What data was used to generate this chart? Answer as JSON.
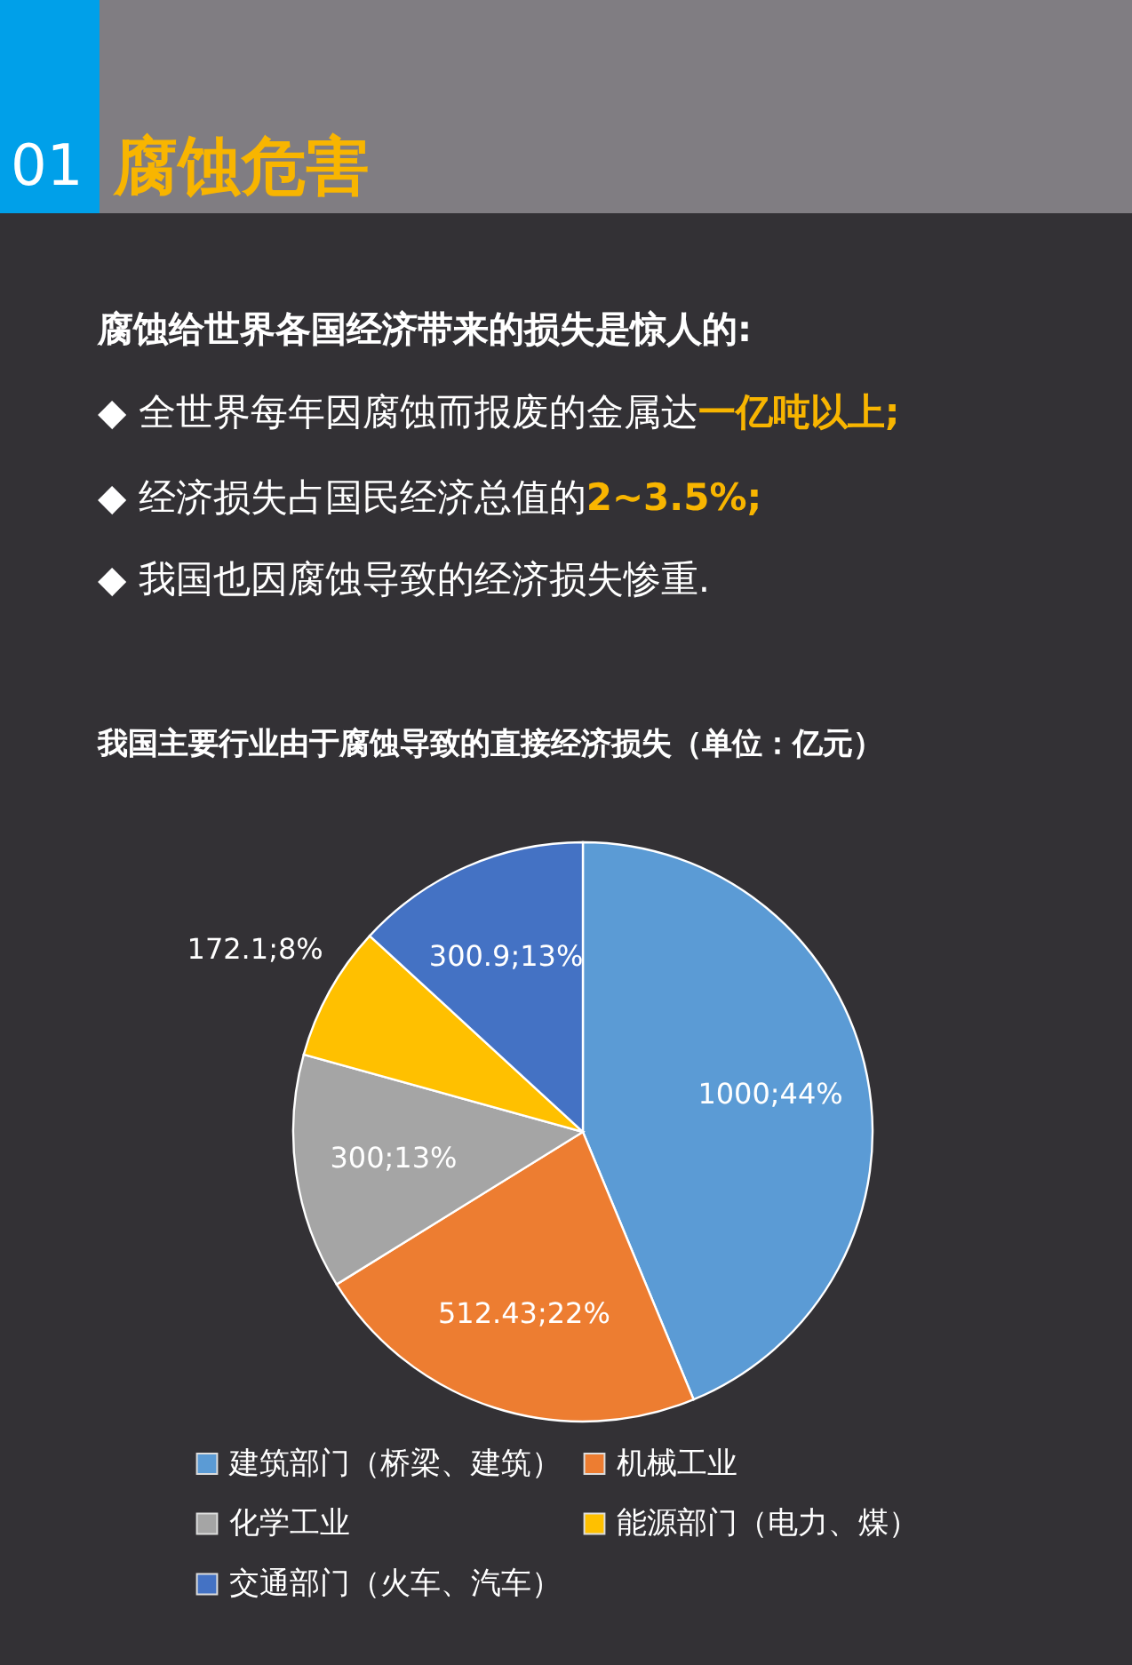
{
  "chart_data": {
    "type": "pie",
    "title": "我国主要行业由于腐蚀导致的直接经济损失（单位：亿元）",
    "categories": [
      "建筑部门（桥梁、建筑）",
      "机械工业",
      "化学工业",
      "能源部门（电力、煤）",
      "交通部门（火车、汽车）"
    ],
    "values": [
      1000,
      512.43,
      300,
      172.1,
      300.9
    ],
    "colors": [
      "#5b9bd5",
      "#ed7d31",
      "#a5a5a5",
      "#ffc000",
      "#4472c4"
    ],
    "value_labels": [
      "1000;44%",
      "512.43;22%",
      "300;13%",
      "172.1;8%",
      "300.9;13%"
    ],
    "legend": "bottom",
    "annotations": [
      "01",
      "腐蚀危害",
      "腐蚀给世界各国经济带来的损失是惊人的:",
      "◆ 全世界每年因腐蚀而报废的金属达",
      "一亿吨以上;",
      "◆ 经济损失占国民经济总值的",
      "2~3.5%;",
      "◆ 我国也因腐蚀导致的经济损失惨重."
    ]
  }
}
